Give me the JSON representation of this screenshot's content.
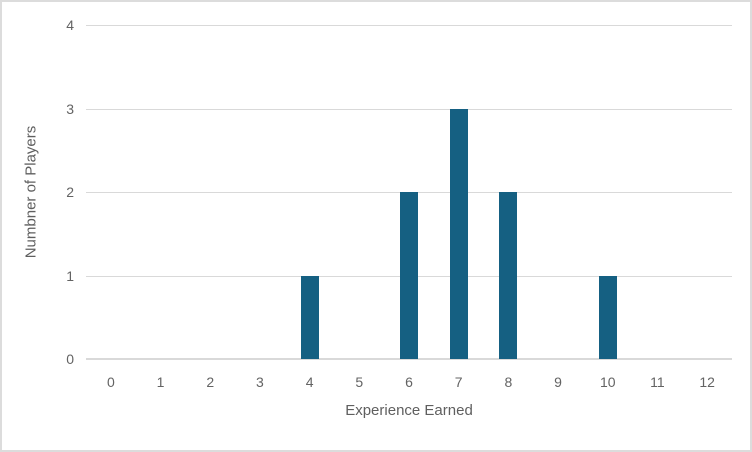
{
  "chart_data": {
    "type": "bar",
    "title": "",
    "xlabel": "Experience Earned",
    "ylabel": "Numbner of Players",
    "categories": [
      "0",
      "1",
      "2",
      "3",
      "4",
      "5",
      "6",
      "7",
      "8",
      "9",
      "10",
      "11",
      "12"
    ],
    "values": [
      0,
      0,
      0,
      0,
      1,
      0,
      2,
      3,
      2,
      0,
      1,
      0,
      0
    ],
    "ylim": [
      0,
      4
    ],
    "yticks": [
      0,
      1,
      2,
      3,
      4
    ],
    "grid": true,
    "legend": false,
    "colors": {
      "bar_fill": "#156082",
      "gridline": "#d9d9d9",
      "axis_line": "#d9d9d9",
      "tick_text": "#636363",
      "axis_title_text": "#5f5f5f",
      "background": "#ffffff",
      "frame_border": "#dcdcdc"
    }
  }
}
